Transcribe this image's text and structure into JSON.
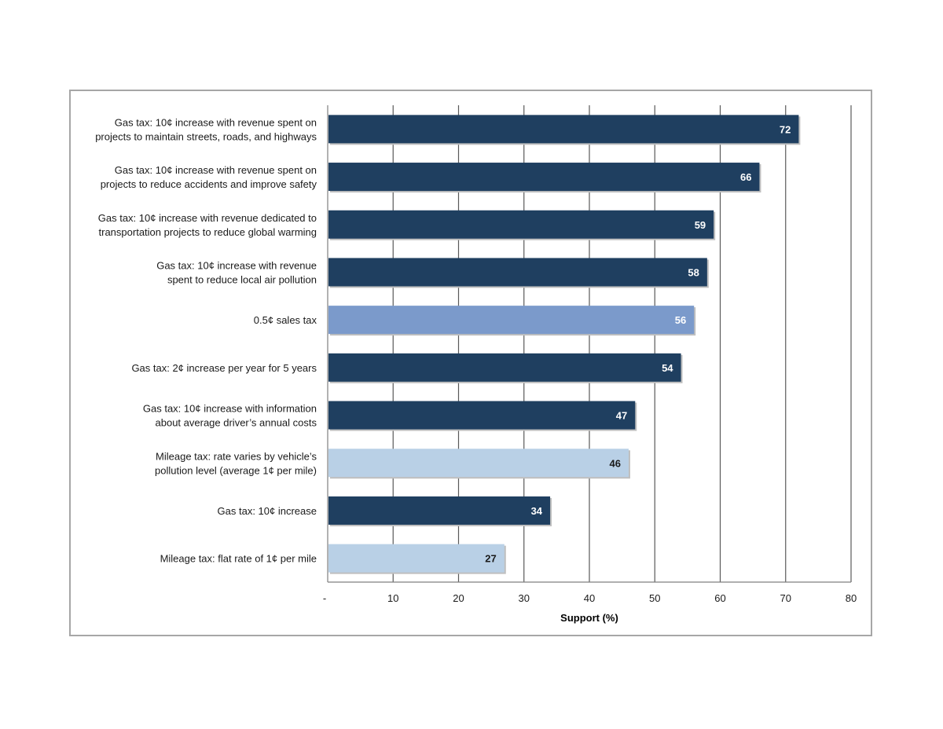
{
  "chart_data": {
    "type": "bar",
    "orientation": "horizontal",
    "categories": [
      [
        "Gas tax: 10¢ increase with revenue spent on",
        "projects to maintain streets, roads, and highways"
      ],
      [
        "Gas tax: 10¢ increase with revenue spent on",
        "projects to reduce accidents and improve safety"
      ],
      [
        "Gas tax: 10¢ increase with revenue dedicated to",
        "transportation projects to reduce global warming"
      ],
      [
        "Gas tax: 10¢ increase with revenue",
        "spent to reduce local air pollution"
      ],
      [
        "0.5¢ sales tax"
      ],
      [
        "Gas tax: 2¢ increase per year for 5 years"
      ],
      [
        "Gas tax: 10¢ increase with information",
        "about average driver’s annual costs"
      ],
      [
        "Mileage tax: rate varies by vehicle’s",
        "pollution level (average 1¢ per mile)"
      ],
      [
        "Gas tax: 10¢ increase"
      ],
      [
        "Mileage tax: flat rate of 1¢ per mile"
      ]
    ],
    "values": [
      72,
      66,
      59,
      58,
      56,
      54,
      47,
      46,
      34,
      27
    ],
    "value_labels": [
      "72",
      "66",
      "59",
      "58",
      "56",
      "54",
      "47",
      "46",
      "34",
      "27"
    ],
    "bar_colors": [
      "#1f3f60",
      "#1f3f60",
      "#1f3f60",
      "#1f3f60",
      "#7b9acb",
      "#1f3f60",
      "#1f3f60",
      "#b9d0e6",
      "#1f3f60",
      "#b9d0e6"
    ],
    "label_colors": [
      "#ffffff",
      "#ffffff",
      "#ffffff",
      "#ffffff",
      "#ffffff",
      "#ffffff",
      "#ffffff",
      "#1a1a1a",
      "#ffffff",
      "#1a1a1a"
    ],
    "xlabel": "Support (%)",
    "ylabel": "",
    "title": "",
    "xlim": [
      0,
      80
    ],
    "xticks": [
      0,
      10,
      20,
      30,
      40,
      50,
      60,
      70,
      80
    ],
    "xtick_labels": [
      "-",
      "10",
      "20",
      "30",
      "40",
      "50",
      "60",
      "70",
      "80"
    ],
    "grid": true,
    "legend": "none"
  }
}
